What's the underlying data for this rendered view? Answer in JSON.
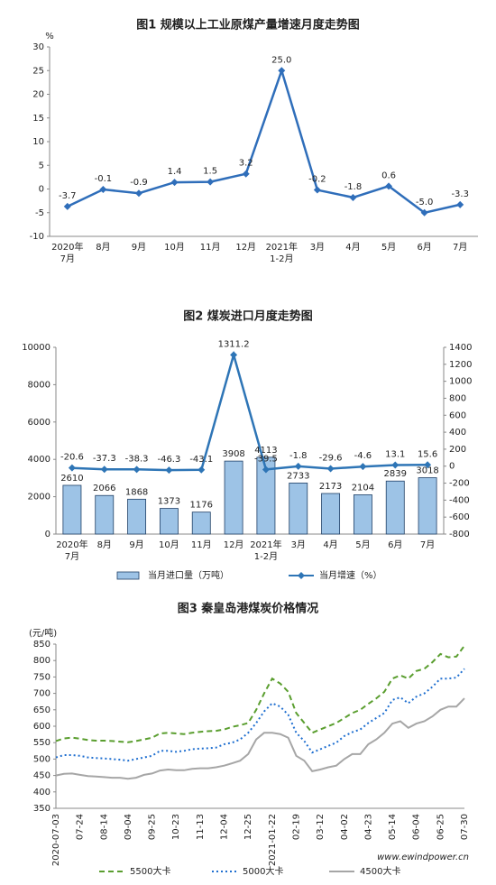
{
  "chart_data": [
    {
      "type": "line",
      "title": "图1  规模以上工业原煤产量增速月度走势图",
      "y_label": "%",
      "categories": [
        "2020年\n7月",
        "8月",
        "9月",
        "10月",
        "11月",
        "12月",
        "2021年\n1-2月",
        "3月",
        "4月",
        "5月",
        "6月",
        "7月"
      ],
      "values": [
        -3.7,
        -0.1,
        -0.9,
        1.4,
        1.5,
        3.2,
        25.0,
        -0.2,
        -1.8,
        0.6,
        -5.0,
        -3.3
      ],
      "value_labels": [
        "-3.7",
        "-0.1",
        "-0.9",
        "1.4",
        "1.5",
        "3.2",
        "25.0",
        "-0.2",
        "-1.8",
        "0.6",
        "-5.0",
        "-3.3"
      ],
      "color": "#2f6eba",
      "marker": "diamond",
      "data_labels": true,
      "ylim": [
        -10,
        30
      ],
      "yticks": [
        -10,
        -5,
        0,
        5,
        10,
        15,
        20,
        25,
        30
      ]
    },
    {
      "type": "bar_line",
      "title": "图2  煤炭进口月度走势图",
      "categories": [
        "2020年\n7月",
        "8月",
        "9月",
        "10月",
        "11月",
        "12月",
        "2021年\n1-2月",
        "3月",
        "4月",
        "5月",
        "6月",
        "7月"
      ],
      "series": [
        {
          "name": "当月进口量（万吨）",
          "type": "bar",
          "color": "#9dc3e6",
          "values": [
            2610,
            2066,
            1868,
            1373,
            1176,
            3908,
            4113,
            2733,
            2173,
            2104,
            2839,
            3018
          ]
        },
        {
          "name": "当月增速（%）",
          "type": "line",
          "axis": "y2",
          "marker": "diamond",
          "color": "#2e75b6",
          "values": [
            -20.6,
            -37.3,
            -38.3,
            -46.3,
            -43.1,
            1311.2,
            -39.5,
            -1.8,
            -29.6,
            -4.6,
            13.1,
            15.6
          ]
        }
      ],
      "data_labels": true,
      "ylim": [
        0,
        10000
      ],
      "yticks": [
        0,
        2000,
        4000,
        6000,
        8000,
        10000
      ],
      "y2lim": [
        -800,
        1400
      ],
      "y2ticks": [
        -800,
        -600,
        -400,
        -200,
        0,
        200,
        400,
        600,
        800,
        1000,
        1200,
        1400
      ]
    },
    {
      "type": "line",
      "title": "图3  秦皇岛港煤炭价格情况",
      "y_label": "(元/吨)",
      "watermark": "www.ewindpower.cn",
      "categories": [
        "2020-07-03",
        null,
        null,
        "07-24",
        null,
        null,
        "08-14",
        null,
        null,
        "09-04",
        null,
        null,
        "09-25",
        null,
        null,
        "10-23",
        null,
        null,
        "11-13",
        null,
        null,
        "12-04",
        null,
        null,
        "12-25",
        null,
        null,
        "2021-01-22",
        null,
        null,
        "02-19",
        null,
        null,
        "03-12",
        null,
        null,
        "04-02",
        null,
        null,
        "04-23",
        null,
        null,
        "05-14",
        null,
        null,
        "06-04",
        null,
        null,
        "06-25",
        null,
        null,
        "07-30"
      ],
      "series": [
        {
          "name": "5500大卡",
          "color": "#5a9e2f",
          "style": "dashed",
          "values": [
            555,
            563,
            565,
            562,
            558,
            556,
            556,
            555,
            553,
            551,
            555,
            560,
            565,
            578,
            580,
            578,
            576,
            580,
            583,
            585,
            586,
            590,
            598,
            603,
            610,
            650,
            700,
            745,
            730,
            705,
            640,
            610,
            580,
            590,
            600,
            610,
            625,
            640,
            650,
            668,
            685,
            705,
            745,
            755,
            745,
            768,
            775,
            795,
            820,
            810,
            812,
            845
          ]
        },
        {
          "name": "5000大卡",
          "color": "#1f6fd0",
          "style": "dotted",
          "values": [
            505,
            512,
            512,
            510,
            505,
            503,
            502,
            500,
            498,
            495,
            500,
            505,
            510,
            525,
            525,
            522,
            525,
            530,
            532,
            533,
            535,
            545,
            550,
            560,
            580,
            610,
            645,
            670,
            660,
            635,
            580,
            555,
            520,
            530,
            540,
            550,
            570,
            582,
            590,
            610,
            625,
            640,
            680,
            688,
            670,
            690,
            700,
            720,
            745,
            745,
            748,
            775
          ]
        },
        {
          "name": "4500大卡",
          "color": "#a6a6a6",
          "style": "solid",
          "values": [
            450,
            455,
            456,
            452,
            448,
            447,
            445,
            443,
            443,
            440,
            443,
            452,
            456,
            465,
            468,
            466,
            466,
            470,
            472,
            472,
            475,
            480,
            487,
            495,
            515,
            560,
            580,
            580,
            576,
            565,
            510,
            495,
            463,
            468,
            475,
            480,
            500,
            515,
            515,
            545,
            560,
            580,
            608,
            615,
            595,
            608,
            615,
            630,
            650,
            660,
            660,
            685
          ]
        }
      ],
      "ylim": [
        350,
        850
      ],
      "yticks": [
        350,
        400,
        450,
        500,
        550,
        600,
        650,
        700,
        750,
        800,
        850
      ]
    }
  ]
}
